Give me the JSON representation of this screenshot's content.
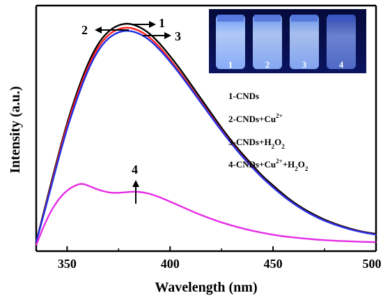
{
  "chart_data": {
    "type": "line",
    "title": "",
    "xlabel": "Wavelength (nm)",
    "ylabel": "Intensity (a.u.)",
    "xlim": [
      335,
      500
    ],
    "ylim": [
      0,
      1.0
    ],
    "x_ticks": [
      350,
      400,
      450,
      500
    ],
    "grid": false,
    "y_tick_labels": false,
    "series": [
      {
        "name": "1-CNDs",
        "color": "#000000",
        "points": [
          [
            335,
            0.02
          ],
          [
            340,
            0.2
          ],
          [
            345,
            0.38
          ],
          [
            350,
            0.55
          ],
          [
            355,
            0.69
          ],
          [
            360,
            0.81
          ],
          [
            365,
            0.9
          ],
          [
            370,
            0.955
          ],
          [
            375,
            0.983
          ],
          [
            380,
            0.99
          ],
          [
            385,
            0.975
          ],
          [
            390,
            0.945
          ],
          [
            395,
            0.9
          ],
          [
            400,
            0.845
          ],
          [
            405,
            0.785
          ],
          [
            410,
            0.72
          ],
          [
            415,
            0.655
          ],
          [
            420,
            0.59
          ],
          [
            425,
            0.525
          ],
          [
            430,
            0.465
          ],
          [
            435,
            0.41
          ],
          [
            440,
            0.36
          ],
          [
            445,
            0.31
          ],
          [
            450,
            0.27
          ],
          [
            455,
            0.23
          ],
          [
            460,
            0.195
          ],
          [
            465,
            0.165
          ],
          [
            470,
            0.14
          ],
          [
            475,
            0.118
          ],
          [
            480,
            0.1
          ],
          [
            485,
            0.085
          ],
          [
            490,
            0.072
          ],
          [
            495,
            0.062
          ],
          [
            500,
            0.055
          ]
        ]
      },
      {
        "name": "2-CNDs+Cu2+",
        "color": "#ff1f1f",
        "points": [
          [
            335,
            0.02
          ],
          [
            340,
            0.19
          ],
          [
            345,
            0.37
          ],
          [
            350,
            0.54
          ],
          [
            355,
            0.675
          ],
          [
            360,
            0.795
          ],
          [
            365,
            0.885
          ],
          [
            370,
            0.94
          ],
          [
            375,
            0.966
          ],
          [
            380,
            0.972
          ],
          [
            385,
            0.958
          ],
          [
            390,
            0.928
          ],
          [
            395,
            0.884
          ],
          [
            400,
            0.829
          ],
          [
            405,
            0.77
          ],
          [
            410,
            0.706
          ],
          [
            415,
            0.642
          ],
          [
            420,
            0.578
          ],
          [
            425,
            0.515
          ],
          [
            430,
            0.456
          ],
          [
            435,
            0.4
          ],
          [
            440,
            0.351
          ],
          [
            445,
            0.303
          ],
          [
            450,
            0.262
          ],
          [
            455,
            0.223
          ],
          [
            460,
            0.19
          ],
          [
            465,
            0.16
          ],
          [
            470,
            0.135
          ],
          [
            475,
            0.114
          ],
          [
            480,
            0.097
          ],
          [
            485,
            0.082
          ],
          [
            490,
            0.07
          ],
          [
            495,
            0.06
          ],
          [
            500,
            0.053
          ]
        ]
      },
      {
        "name": "3-CNDs+H2O2",
        "color": "#1f2fe6",
        "points": [
          [
            335,
            0.02
          ],
          [
            340,
            0.185
          ],
          [
            345,
            0.36
          ],
          [
            350,
            0.525
          ],
          [
            355,
            0.66
          ],
          [
            360,
            0.78
          ],
          [
            365,
            0.87
          ],
          [
            370,
            0.925
          ],
          [
            375,
            0.952
          ],
          [
            380,
            0.958
          ],
          [
            385,
            0.945
          ],
          [
            390,
            0.916
          ],
          [
            395,
            0.873
          ],
          [
            400,
            0.82
          ],
          [
            405,
            0.762
          ],
          [
            410,
            0.7
          ],
          [
            415,
            0.637
          ],
          [
            420,
            0.574
          ],
          [
            425,
            0.512
          ],
          [
            430,
            0.453
          ],
          [
            435,
            0.398
          ],
          [
            440,
            0.349
          ],
          [
            445,
            0.302
          ],
          [
            450,
            0.261
          ],
          [
            455,
            0.222
          ],
          [
            460,
            0.189
          ],
          [
            465,
            0.159
          ],
          [
            470,
            0.134
          ],
          [
            475,
            0.113
          ],
          [
            480,
            0.096
          ],
          [
            485,
            0.081
          ],
          [
            490,
            0.069
          ],
          [
            495,
            0.059
          ],
          [
            500,
            0.052
          ]
        ]
      },
      {
        "name": "4-CNDs+Cu2+ +H2O2",
        "color": "#e62ce6",
        "points": [
          [
            335,
            0.005
          ],
          [
            340,
            0.12
          ],
          [
            345,
            0.2
          ],
          [
            350,
            0.25
          ],
          [
            355,
            0.275
          ],
          [
            358,
            0.278
          ],
          [
            362,
            0.262
          ],
          [
            367,
            0.245
          ],
          [
            372,
            0.236
          ],
          [
            377,
            0.238
          ],
          [
            382,
            0.243
          ],
          [
            387,
            0.24
          ],
          [
            392,
            0.228
          ],
          [
            397,
            0.21
          ],
          [
            402,
            0.19
          ],
          [
            407,
            0.17
          ],
          [
            412,
            0.15
          ],
          [
            417,
            0.132
          ],
          [
            422,
            0.115
          ],
          [
            427,
            0.1
          ],
          [
            432,
            0.087
          ],
          [
            437,
            0.075
          ],
          [
            442,
            0.065
          ],
          [
            447,
            0.056
          ],
          [
            452,
            0.048
          ],
          [
            457,
            0.042
          ],
          [
            462,
            0.037
          ],
          [
            467,
            0.033
          ],
          [
            472,
            0.029
          ],
          [
            477,
            0.026
          ],
          [
            482,
            0.024
          ],
          [
            487,
            0.022
          ],
          [
            492,
            0.02
          ],
          [
            497,
            0.019
          ],
          [
            500,
            0.018
          ]
        ]
      }
    ],
    "annotations": {
      "num_1": "1",
      "num_2": "2",
      "num_3": "3",
      "num_4": "4"
    },
    "legend": {
      "placement": "right-middle",
      "entries": [
        {
          "prefix": "1-CNDs",
          "parts": []
        },
        {
          "prefix": "2-CNDs+Cu",
          "sup1": "2+",
          "tail": ""
        },
        {
          "prefix": "3-CNDs+H",
          "sub1": "2",
          "mid": "O",
          "sub2": "2"
        },
        {
          "prefix": "4-CNDs+Cu",
          "sup1": "2+",
          "mid": "+H",
          "sub1": "2",
          "mid2": "O",
          "sub2": "2"
        }
      ]
    },
    "inset_photo": {
      "placement": "top-right",
      "vial_labels": [
        "1",
        "2",
        "3",
        "4"
      ]
    }
  }
}
